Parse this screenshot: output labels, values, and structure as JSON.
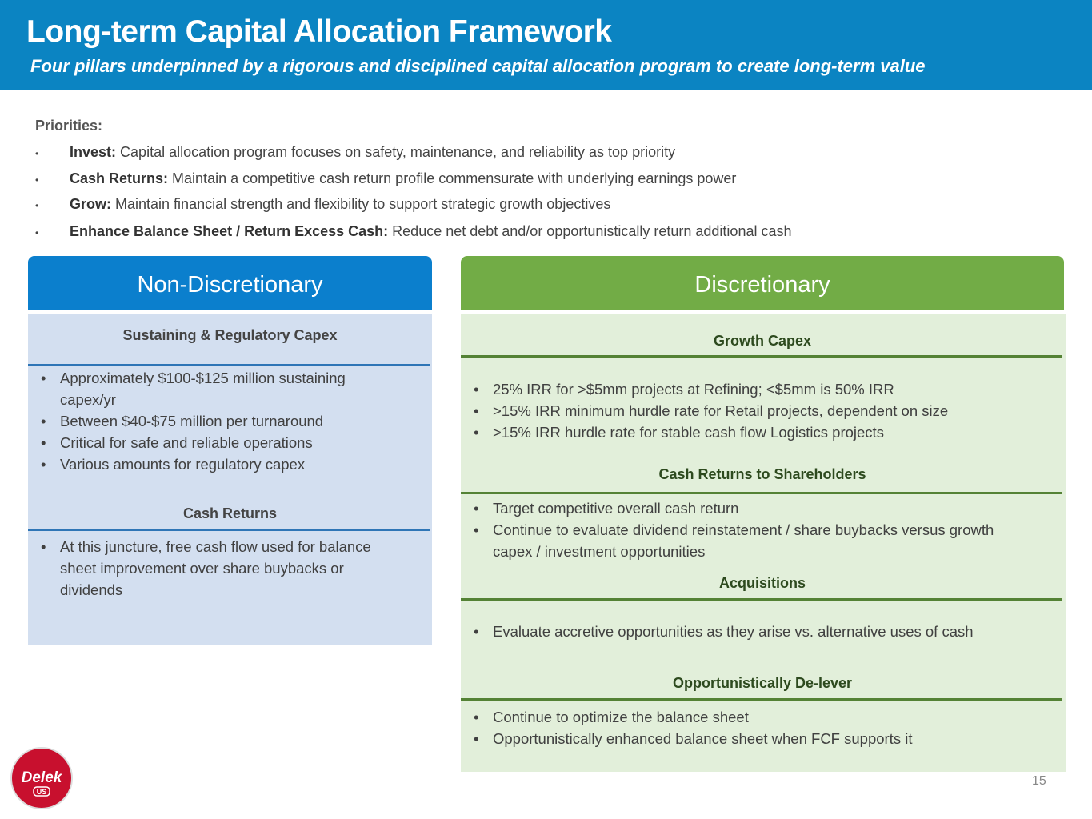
{
  "header": {
    "title": "Long-term Capital Allocation Framework",
    "subtitle": "Four pillars underpinned by a rigorous and disciplined capital allocation program to create long-term value"
  },
  "priorities": {
    "heading": "Priorities:",
    "items": [
      {
        "label": "Invest:",
        "text": "Capital allocation program focuses on safety, maintenance, and reliability as top priority"
      },
      {
        "label": "Cash Returns:",
        "text": "Maintain a competitive cash return profile commensurate with underlying earnings power"
      },
      {
        "label": "Grow:",
        "text": "Maintain financial strength and flexibility to support strategic growth objectives"
      },
      {
        "label": "Enhance Balance Sheet / Return Excess Cash:",
        "text": "Reduce net debt and/or opportunistically return additional cash"
      }
    ]
  },
  "non_discretionary": {
    "title": "Non-Discretionary",
    "sections": [
      {
        "heading": "Sustaining & Regulatory Capex",
        "bullets": [
          "Approximately $100-$125 million sustaining capex/yr",
          "Between $40-$75 million per turnaround",
          "Critical for safe and reliable operations",
          "Various amounts for regulatory capex"
        ]
      },
      {
        "heading": "Cash Returns",
        "bullets": [
          "At this juncture, free cash flow used for balance sheet improvement over share buybacks or dividends"
        ]
      }
    ]
  },
  "discretionary": {
    "title": "Discretionary",
    "sections": [
      {
        "heading": "Growth Capex",
        "bullets": [
          "25% IRR for >$5mm projects at Refining; <$5mm is 50% IRR",
          ">15% IRR minimum hurdle rate for Retail projects, dependent on size",
          ">15% IRR hurdle rate for stable cash flow Logistics projects"
        ]
      },
      {
        "heading": "Cash Returns to Shareholders",
        "bullets": [
          "Target competitive overall cash return",
          "Continue to evaluate dividend reinstatement / share buybacks versus growth capex / investment opportunities"
        ]
      },
      {
        "heading": "Acquisitions",
        "bullets": [
          "Evaluate accretive opportunities as they arise vs. alternative uses of cash"
        ]
      },
      {
        "heading": "Opportunistically De-lever",
        "bullets": [
          "Continue to optimize the balance sheet",
          "Opportunistically enhanced balance sheet when FCF supports it"
        ]
      }
    ]
  },
  "logo": {
    "text": "Delek",
    "sub": "US"
  },
  "page_number": "15"
}
